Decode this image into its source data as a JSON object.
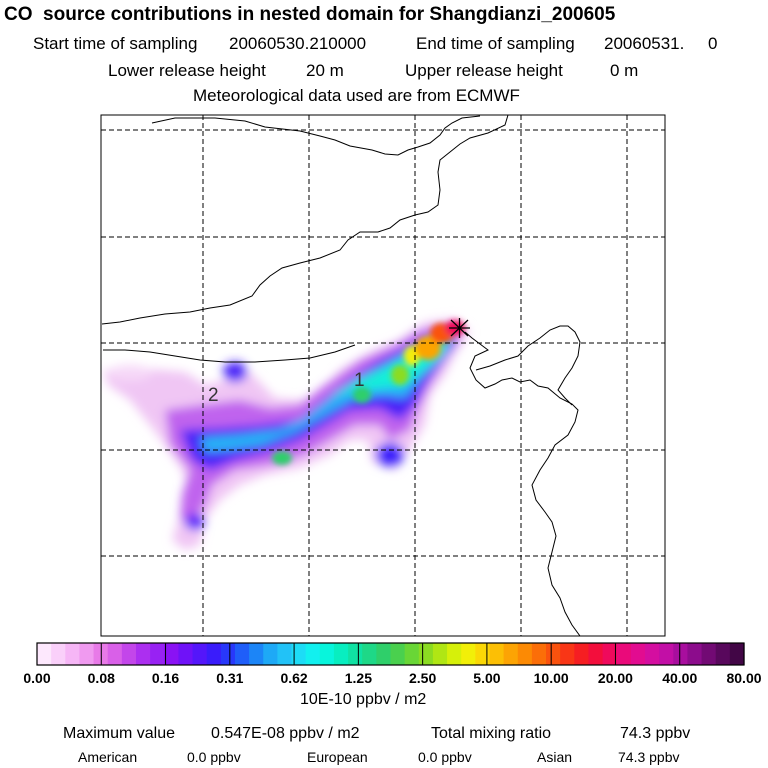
{
  "header": {
    "title": "CO  source contributions in nested domain for Shangdianzi_200605",
    "start_label": "Start time of sampling",
    "start_value": "20060530.210000",
    "end_label": "End time of sampling",
    "end_value": "20060531.     0",
    "lower_label": "Lower release height",
    "lower_value": "20 m",
    "upper_label": "Upper release height",
    "upper_value": "0 m",
    "met_line": "Meteorological data used are from ECMWF"
  },
  "map": {
    "station_marker": "star-cross-icon",
    "labels": [
      "1",
      "2"
    ]
  },
  "colorbar": {
    "tick_labels": [
      "0.00",
      "0.08",
      "0.16",
      "0.31",
      "0.62",
      "1.25",
      "2.50",
      "5.00",
      "10.00",
      "20.00",
      "40.00",
      "80.00"
    ],
    "colors": [
      "#fde8fd",
      "#fad0fa",
      "#f6b6f6",
      "#f09af0",
      "#e87ae8",
      "#d960e8",
      "#c346ea",
      "#ac2ff0",
      "#9822f3",
      "#8a12f4",
      "#6f12f8",
      "#5416fa",
      "#3a1cfb",
      "#2838fb",
      "#1f5ef9",
      "#1c85f7",
      "#1ea9f6",
      "#22c2f7",
      "#1ddcf6",
      "#12f0ef",
      "#08f5dc",
      "#08eec0",
      "#10e2a3",
      "#1ed887",
      "#2fcf6a",
      "#4ad04e",
      "#69d636",
      "#8bdc22",
      "#b0e614",
      "#d6f00a",
      "#f2ef08",
      "#fbd806",
      "#fcbf05",
      "#fca404",
      "#fc8a04",
      "#fb6e08",
      "#fa520e",
      "#f93616",
      "#f61e22",
      "#f30e3c",
      "#ef0a5c",
      "#ea0a7a",
      "#e20c90",
      "#d40ea0",
      "#c20fa6",
      "#a80e9e",
      "#8c0c8c",
      "#720a74",
      "#58085c",
      "#420646"
    ],
    "unit": "10E-10 ppbv / m2"
  },
  "footer": {
    "max_label": "Maximum value",
    "max_value": "0.547E-08 ppbv / m2",
    "total_label": "Total mixing ratio",
    "total_value": "74.3 ppbv",
    "american_label": "American",
    "american_value": "0.0 ppbv",
    "european_label": "European",
    "european_value": "0.0 ppbv",
    "asian_label": "Asian",
    "asian_value": "74.3 ppbv"
  }
}
